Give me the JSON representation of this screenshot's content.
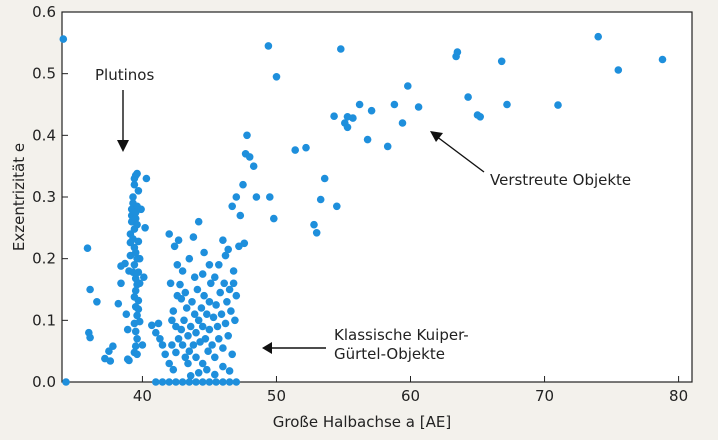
{
  "chart_data": {
    "type": "scatter",
    "title": "",
    "xlabel": "Große Halbachse a [AE]",
    "ylabel": "Exzentrizität e",
    "xlim": [
      34,
      81
    ],
    "ylim": [
      0,
      0.6
    ],
    "x_ticks": [
      "40",
      "50",
      "60",
      "70",
      "80"
    ],
    "y_ticks": [
      "0.0",
      "0.1",
      "0.2",
      "0.3",
      "0.4",
      "0.5",
      "0.6"
    ],
    "grid": false,
    "legend": "none",
    "marker_color": "#1e8fdc",
    "annotations": [
      {
        "id": "plutinos",
        "lines": [
          "Plutinos"
        ]
      },
      {
        "id": "scattered",
        "lines": [
          "Verstreute Objekte"
        ]
      },
      {
        "id": "classical",
        "lines": [
          "Klassische Kuiper-",
          "Gürtel-Objekte"
        ]
      }
    ],
    "series": [
      {
        "points": [
          [
            34.1,
            0.556
          ],
          [
            34.3,
            0.0
          ],
          [
            35.9,
            0.217
          ],
          [
            36.1,
            0.15
          ],
          [
            36.0,
            0.08
          ],
          [
            36.1,
            0.072
          ],
          [
            36.6,
            0.13
          ],
          [
            37.2,
            0.038
          ],
          [
            37.5,
            0.05
          ],
          [
            37.6,
            0.034
          ],
          [
            37.8,
            0.058
          ],
          [
            38.2,
            0.127
          ],
          [
            38.4,
            0.16
          ],
          [
            38.8,
            0.11
          ],
          [
            38.9,
            0.085
          ],
          [
            38.9,
            0.037
          ],
          [
            38.4,
            0.188
          ],
          [
            38.7,
            0.192
          ],
          [
            39.0,
            0.035
          ],
          [
            39.0,
            0.18
          ],
          [
            39.1,
            0.205
          ],
          [
            39.1,
            0.226
          ],
          [
            39.1,
            0.24
          ],
          [
            39.2,
            0.26
          ],
          [
            39.2,
            0.27
          ],
          [
            39.2,
            0.28
          ],
          [
            39.3,
            0.29
          ],
          [
            39.3,
            0.3
          ],
          [
            39.4,
            0.32
          ],
          [
            39.4,
            0.33
          ],
          [
            39.5,
            0.335
          ],
          [
            39.6,
            0.338
          ],
          [
            39.7,
            0.31
          ],
          [
            39.6,
            0.285
          ],
          [
            39.5,
            0.275
          ],
          [
            39.5,
            0.265
          ],
          [
            39.6,
            0.255
          ],
          [
            39.4,
            0.248
          ],
          [
            39.3,
            0.232
          ],
          [
            39.4,
            0.218
          ],
          [
            39.5,
            0.21
          ],
          [
            39.6,
            0.2
          ],
          [
            39.4,
            0.19
          ],
          [
            39.3,
            0.178
          ],
          [
            39.5,
            0.168
          ],
          [
            39.6,
            0.158
          ],
          [
            39.5,
            0.148
          ],
          [
            39.4,
            0.138
          ],
          [
            39.5,
            0.122
          ],
          [
            39.6,
            0.108
          ],
          [
            39.4,
            0.095
          ],
          [
            39.5,
            0.082
          ],
          [
            39.6,
            0.07
          ],
          [
            39.5,
            0.058
          ],
          [
            39.4,
            0.048
          ],
          [
            39.7,
            0.178
          ],
          [
            39.8,
            0.2
          ],
          [
            39.7,
            0.228
          ],
          [
            39.9,
            0.28
          ],
          [
            39.8,
            0.16
          ],
          [
            39.7,
            0.132
          ],
          [
            39.7,
            0.118
          ],
          [
            39.8,
            0.098
          ],
          [
            39.6,
            0.045
          ],
          [
            40.3,
            0.33
          ],
          [
            40.2,
            0.25
          ],
          [
            40.1,
            0.17
          ],
          [
            40.0,
            0.06
          ],
          [
            40.7,
            0.092
          ],
          [
            41.0,
            0.08
          ],
          [
            41.2,
            0.095
          ],
          [
            41.3,
            0.07
          ],
          [
            41.5,
            0.06
          ],
          [
            41.7,
            0.045
          ],
          [
            42.0,
            0.24
          ],
          [
            42.2,
            0.1
          ],
          [
            42.3,
            0.115
          ],
          [
            42.5,
            0.09
          ],
          [
            42.4,
            0.22
          ],
          [
            42.7,
            0.23
          ],
          [
            42.6,
            0.19
          ],
          [
            42.8,
            0.158
          ],
          [
            42.9,
            0.135
          ],
          [
            42.2,
            0.06
          ],
          [
            42.0,
            0.03
          ],
          [
            42.3,
            0.02
          ],
          [
            42.5,
            0.048
          ],
          [
            42.7,
            0.07
          ],
          [
            42.9,
            0.085
          ],
          [
            43.0,
            0.06
          ],
          [
            43.1,
            0.1
          ],
          [
            43.2,
            0.04
          ],
          [
            43.3,
            0.12
          ],
          [
            43.4,
            0.075
          ],
          [
            43.4,
            0.03
          ],
          [
            43.5,
            0.05
          ],
          [
            43.6,
            0.09
          ],
          [
            43.7,
            0.13
          ],
          [
            43.8,
            0.06
          ],
          [
            43.9,
            0.11
          ],
          [
            44.0,
            0.08
          ],
          [
            44.0,
            0.04
          ],
          [
            44.1,
            0.15
          ],
          [
            44.2,
            0.1
          ],
          [
            44.3,
            0.065
          ],
          [
            44.4,
            0.12
          ],
          [
            44.5,
            0.09
          ],
          [
            44.5,
            0.03
          ],
          [
            44.6,
            0.14
          ],
          [
            44.7,
            0.07
          ],
          [
            44.8,
            0.11
          ],
          [
            44.9,
            0.05
          ],
          [
            45.0,
            0.13
          ],
          [
            45.0,
            0.085
          ],
          [
            45.1,
            0.16
          ],
          [
            45.2,
            0.06
          ],
          [
            45.3,
            0.105
          ],
          [
            45.4,
            0.04
          ],
          [
            45.5,
            0.125
          ],
          [
            45.6,
            0.09
          ],
          [
            45.7,
            0.07
          ],
          [
            45.8,
            0.145
          ],
          [
            45.9,
            0.11
          ],
          [
            46.0,
            0.055
          ],
          [
            46.1,
            0.16
          ],
          [
            46.2,
            0.095
          ],
          [
            46.3,
            0.13
          ],
          [
            46.4,
            0.075
          ],
          [
            46.5,
            0.15
          ],
          [
            46.6,
            0.115
          ],
          [
            46.7,
            0.045
          ],
          [
            46.8,
            0.16
          ],
          [
            46.9,
            0.1
          ],
          [
            43.6,
            0.01
          ],
          [
            44.2,
            0.015
          ],
          [
            44.8,
            0.02
          ],
          [
            45.4,
            0.012
          ],
          [
            46.0,
            0.025
          ],
          [
            46.5,
            0.018
          ],
          [
            43.0,
            0.18
          ],
          [
            43.5,
            0.2
          ],
          [
            43.8,
            0.235
          ],
          [
            44.2,
            0.26
          ],
          [
            44.6,
            0.21
          ],
          [
            45.0,
            0.19
          ],
          [
            45.4,
            0.17
          ],
          [
            46.0,
            0.23
          ],
          [
            46.4,
            0.215
          ],
          [
            46.8,
            0.18
          ],
          [
            47.0,
            0.14
          ],
          [
            42.1,
            0.16
          ],
          [
            42.6,
            0.14
          ],
          [
            43.2,
            0.145
          ],
          [
            43.9,
            0.17
          ],
          [
            44.5,
            0.175
          ],
          [
            45.7,
            0.19
          ],
          [
            46.2,
            0.205
          ],
          [
            41.0,
            0.0
          ],
          [
            41.5,
            0.0
          ],
          [
            42.0,
            0.0
          ],
          [
            42.5,
            0.0
          ],
          [
            43.0,
            0.0
          ],
          [
            43.5,
            0.0
          ],
          [
            44.0,
            0.0
          ],
          [
            44.5,
            0.0
          ],
          [
            45.0,
            0.0
          ],
          [
            45.5,
            0.0
          ],
          [
            46.0,
            0.0
          ],
          [
            46.5,
            0.0
          ],
          [
            47.0,
            0.0
          ],
          [
            46.7,
            0.285
          ],
          [
            47.2,
            0.22
          ],
          [
            47.0,
            0.3
          ],
          [
            47.3,
            0.27
          ],
          [
            47.5,
            0.32
          ],
          [
            47.7,
            0.37
          ],
          [
            47.8,
            0.4
          ],
          [
            48.0,
            0.365
          ],
          [
            48.3,
            0.35
          ],
          [
            47.6,
            0.225
          ],
          [
            48.5,
            0.3
          ],
          [
            49.5,
            0.3
          ],
          [
            49.8,
            0.265
          ],
          [
            49.4,
            0.545
          ],
          [
            50.0,
            0.495
          ],
          [
            51.4,
            0.376
          ],
          [
            52.2,
            0.38
          ],
          [
            52.8,
            0.255
          ],
          [
            53.0,
            0.242
          ],
          [
            53.3,
            0.296
          ],
          [
            53.6,
            0.33
          ],
          [
            54.3,
            0.431
          ],
          [
            54.5,
            0.285
          ],
          [
            54.8,
            0.54
          ],
          [
            55.1,
            0.42
          ],
          [
            55.3,
            0.413
          ],
          [
            55.3,
            0.43
          ],
          [
            55.7,
            0.428
          ],
          [
            56.2,
            0.45
          ],
          [
            56.8,
            0.393
          ],
          [
            57.1,
            0.44
          ],
          [
            58.3,
            0.382
          ],
          [
            58.8,
            0.45
          ],
          [
            59.4,
            0.42
          ],
          [
            59.8,
            0.48
          ],
          [
            60.6,
            0.446
          ],
          [
            63.4,
            0.528
          ],
          [
            63.5,
            0.535
          ],
          [
            64.3,
            0.462
          ],
          [
            65.0,
            0.433
          ],
          [
            65.2,
            0.43
          ],
          [
            66.8,
            0.52
          ],
          [
            67.2,
            0.45
          ],
          [
            71.0,
            0.449
          ],
          [
            74.0,
            0.56
          ],
          [
            75.5,
            0.506
          ],
          [
            78.8,
            0.523
          ]
        ]
      }
    ]
  }
}
